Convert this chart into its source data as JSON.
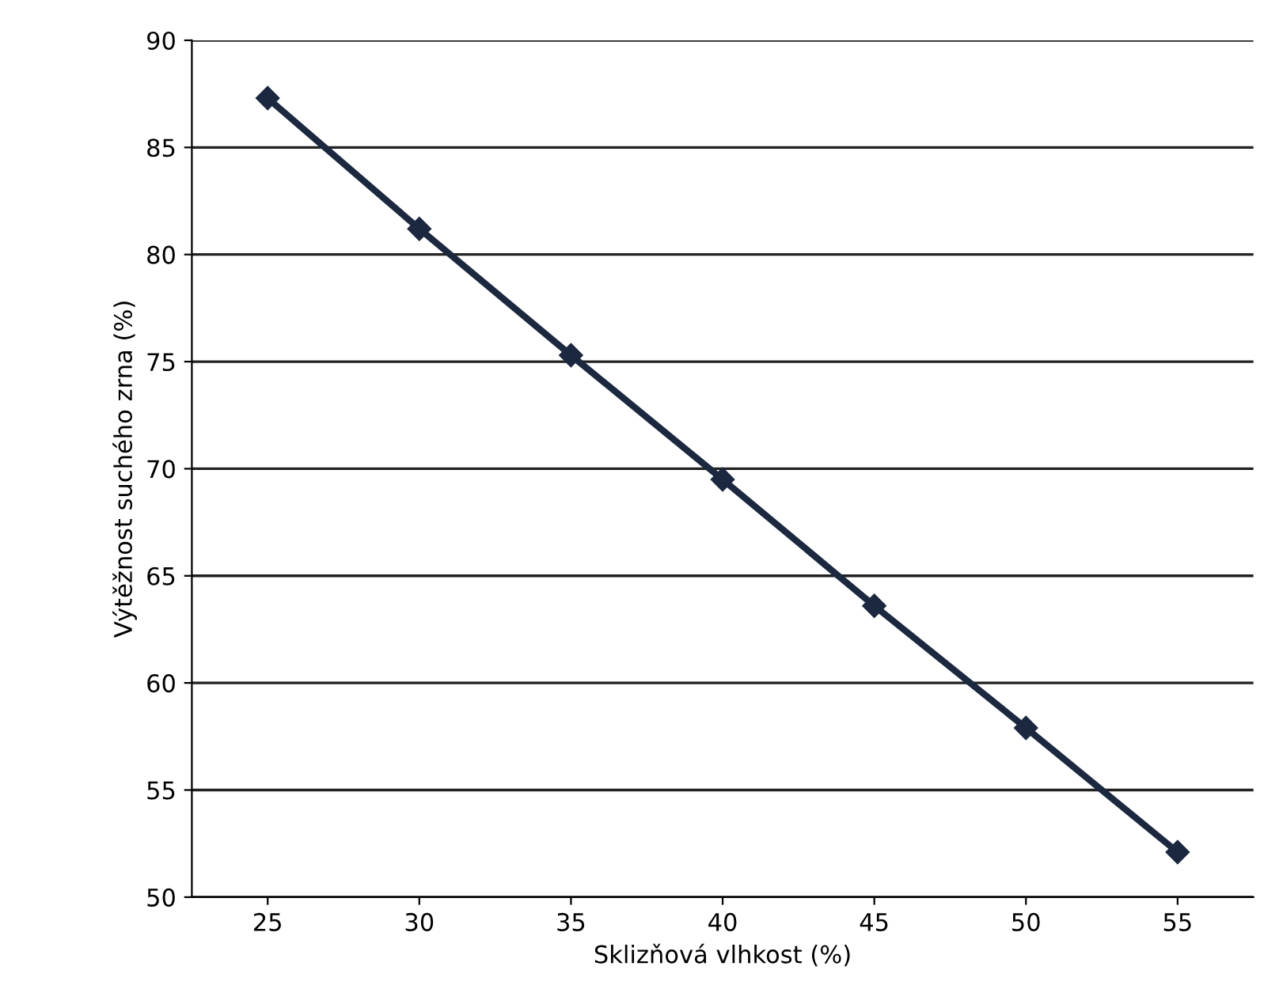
{
  "chart_data": {
    "type": "line",
    "xlabel": "Sklizňová vlhkost (%)",
    "ylabel": "Výtěžnost suchého zrna (%)",
    "categories": [
      "25",
      "30",
      "35",
      "40",
      "45",
      "50",
      "55"
    ],
    "series": [
      {
        "color": "#1c2840",
        "values": [
          87.3,
          81.2,
          75.3,
          69.5,
          63.6,
          57.9,
          52.1
        ]
      }
    ],
    "ylim": [
      50,
      90
    ],
    "yticks": [
      50,
      55,
      60,
      65,
      70,
      75,
      80,
      85,
      90
    ],
    "grid": "y",
    "marker": "diamond",
    "line_style": "solid",
    "legend": false
  }
}
